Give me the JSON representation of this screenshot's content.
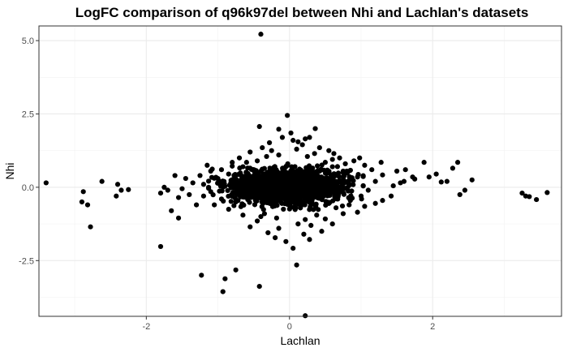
{
  "chart_data": {
    "type": "scatter",
    "title": "LogFC comparison of q96k97del between Nhi and Lachlan's datasets",
    "xlabel": "Lachlan",
    "ylabel": "Nhi",
    "xlim": [
      -3.5,
      3.8
    ],
    "ylim": [
      -4.4,
      5.5
    ],
    "x_ticks": [
      -2,
      0,
      2
    ],
    "x_tick_labels": [
      "-2",
      "0",
      "2"
    ],
    "y_ticks": [
      -2.5,
      0,
      2.5,
      5
    ],
    "y_tick_labels": [
      "-2.5",
      "0.0",
      "2.5",
      "5.0"
    ],
    "grid": true,
    "point_color": "#000000",
    "points": [
      [
        -0.4,
        5.22
      ],
      [
        -0.03,
        2.45
      ],
      [
        -0.42,
        2.07
      ],
      [
        -0.15,
        1.98
      ],
      [
        0.36,
        2.0
      ],
      [
        -0.1,
        1.7
      ],
      [
        0.05,
        1.6
      ],
      [
        0.22,
        1.65
      ],
      [
        -0.28,
        1.52
      ],
      [
        0.18,
        1.45
      ],
      [
        0.42,
        1.35
      ],
      [
        0.55,
        1.25
      ],
      [
        -0.55,
        1.2
      ],
      [
        -0.32,
        1.05
      ],
      [
        0.25,
        1.05
      ],
      [
        0.62,
        1.15
      ],
      [
        0.7,
        1.0
      ],
      [
        -0.7,
        1.0
      ],
      [
        -0.45,
        0.9
      ],
      [
        0.5,
        0.85
      ],
      [
        0.9,
        0.9
      ],
      [
        -0.95,
        0.6
      ],
      [
        -0.8,
        0.72
      ],
      [
        1.05,
        0.75
      ],
      [
        1.15,
        0.6
      ],
      [
        -1.1,
        0.55
      ],
      [
        -1.25,
        0.4
      ],
      [
        1.3,
        0.42
      ],
      [
        1.5,
        0.55
      ],
      [
        1.62,
        0.6
      ],
      [
        1.72,
        0.35
      ],
      [
        1.55,
        0.15
      ],
      [
        1.45,
        0.05
      ],
      [
        1.42,
        -0.3
      ],
      [
        1.6,
        0.2
      ],
      [
        1.75,
        0.28
      ],
      [
        1.88,
        0.85
      ],
      [
        1.95,
        0.35
      ],
      [
        2.05,
        0.45
      ],
      [
        2.12,
        0.18
      ],
      [
        -1.2,
        -0.3
      ],
      [
        -1.4,
        -0.25
      ],
      [
        -1.55,
        -0.35
      ],
      [
        -1.5,
        -0.05
      ],
      [
        -1.7,
        -0.1
      ],
      [
        -1.8,
        -0.2
      ],
      [
        -1.75,
        0.0
      ],
      [
        -1.6,
        0.4
      ],
      [
        -1.45,
        0.3
      ],
      [
        -1.35,
        0.15
      ],
      [
        -1.65,
        -0.8
      ],
      [
        -1.55,
        -1.05
      ],
      [
        -3.4,
        0.15
      ],
      [
        -2.88,
        -0.15
      ],
      [
        -2.9,
        -0.5
      ],
      [
        -2.82,
        -0.6
      ],
      [
        -2.78,
        -1.35
      ],
      [
        -2.62,
        0.2
      ],
      [
        -2.42,
        -0.3
      ],
      [
        -2.4,
        0.1
      ],
      [
        -2.35,
        -0.1
      ],
      [
        -2.25,
        -0.08
      ],
      [
        2.28,
        0.65
      ],
      [
        2.35,
        0.85
      ],
      [
        2.2,
        0.2
      ],
      [
        2.38,
        -0.25
      ],
      [
        2.45,
        -0.1
      ],
      [
        2.55,
        0.25
      ],
      [
        3.25,
        -0.2
      ],
      [
        3.3,
        -0.3
      ],
      [
        3.35,
        -0.32
      ],
      [
        3.45,
        -0.42
      ],
      [
        3.6,
        -0.18
      ],
      [
        -1.8,
        -2.02
      ],
      [
        -1.23,
        -3.0
      ],
      [
        -0.9,
        -3.12
      ],
      [
        -0.75,
        -2.82
      ],
      [
        -0.93,
        -3.56
      ],
      [
        -0.42,
        -3.38
      ],
      [
        0.22,
        -4.38
      ],
      [
        0.1,
        -2.65
      ],
      [
        0.05,
        -2.08
      ],
      [
        -0.05,
        -1.85
      ],
      [
        -0.2,
        -1.72
      ],
      [
        0.2,
        -1.6
      ],
      [
        -0.3,
        -1.55
      ],
      [
        0.28,
        -1.78
      ],
      [
        0.45,
        -1.5
      ],
      [
        -0.45,
        -1.15
      ],
      [
        0.6,
        -1.25
      ],
      [
        0.5,
        -1.08
      ],
      [
        -0.65,
        -0.95
      ],
      [
        0.75,
        -0.9
      ],
      [
        0.95,
        -0.85
      ],
      [
        -0.85,
        -0.75
      ],
      [
        1.05,
        -0.65
      ],
      [
        1.2,
        -0.55
      ],
      [
        -1.05,
        -0.6
      ],
      [
        0.3,
        -1.3
      ],
      [
        -0.15,
        -1.4
      ],
      [
        0.12,
        -1.25
      ],
      [
        -0.55,
        -1.35
      ],
      [
        0.38,
        -0.95
      ],
      [
        -0.35,
        -0.9
      ],
      [
        0.65,
        -0.7
      ],
      [
        -0.75,
        -0.5
      ],
      [
        0.85,
        -0.45
      ],
      [
        -0.95,
        -0.4
      ],
      [
        1.0,
        -0.3
      ],
      [
        -1.1,
        -0.15
      ],
      [
        1.1,
        -0.1
      ],
      [
        -1.2,
        0.1
      ],
      [
        1.2,
        0.2
      ],
      [
        -1.0,
        0.3
      ],
      [
        0.95,
        0.35
      ],
      [
        -0.85,
        0.45
      ],
      [
        0.8,
        0.55
      ],
      [
        -0.65,
        0.7
      ],
      [
        0.6,
        0.7
      ],
      [
        -0.5,
        0.6
      ],
      [
        0.45,
        0.6
      ],
      [
        -0.25,
        1.25
      ],
      [
        0.1,
        1.3
      ],
      [
        0.35,
        1.15
      ],
      [
        -0.15,
        1.1
      ],
      [
        0.6,
        0.95
      ],
      [
        -0.6,
        0.85
      ],
      [
        0.78,
        0.8
      ],
      [
        -0.8,
        0.85
      ],
      [
        0.02,
        1.85
      ],
      [
        0.28,
        1.7
      ],
      [
        -0.38,
        1.35
      ],
      [
        0.12,
        1.55
      ],
      [
        1.28,
        0.85
      ],
      [
        0.98,
        1.0
      ],
      [
        -1.15,
        0.75
      ],
      [
        -1.3,
        -0.6
      ],
      [
        1.3,
        -0.45
      ],
      [
        -0.18,
        -1.05
      ],
      [
        0.22,
        -1.1
      ],
      [
        -0.4,
        -1.0
      ]
    ],
    "cluster": {
      "center_x": -0.05,
      "center_y": 0.02,
      "sd_x": 0.36,
      "sd_y": 0.26,
      "count": 2200,
      "seed": 97
    }
  }
}
